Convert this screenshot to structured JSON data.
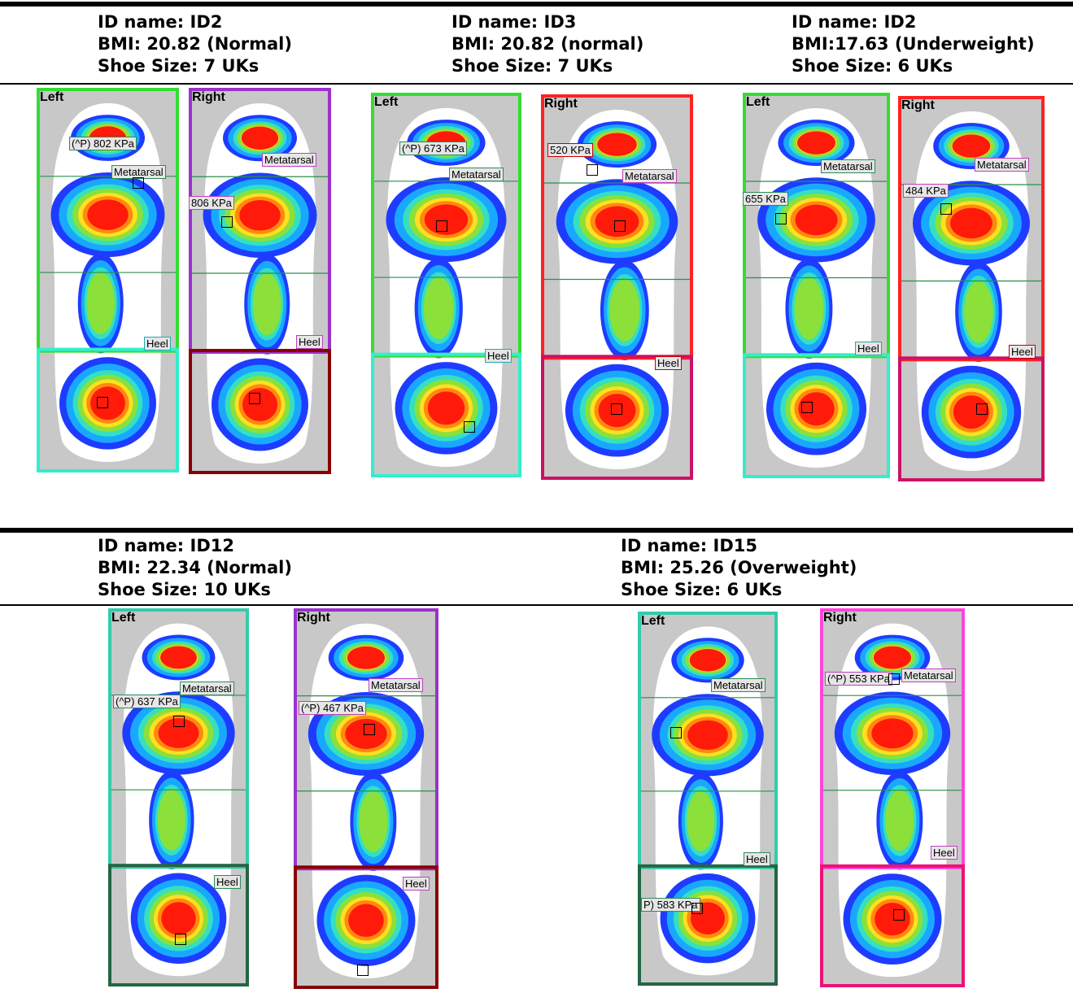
{
  "rows": [
    {
      "subjects": [
        {
          "id_line": "ID name: ID2",
          "bmi_line": "BMI: 20.82 (Normal)",
          "shoe_line": "Shoe Size: 7 UKs",
          "feet": [
            {
              "side": "Left",
              "frame_color": "#33dd33",
              "lower_color": "#33eecc",
              "tags": [
                {
                  "text": "(^P) 802 KPa",
                  "style": "green"
                },
                {
                  "text": "Metatarsal",
                  "style": "green"
                },
                {
                  "text": "Heel",
                  "style": "teal"
                }
              ]
            },
            {
              "side": "Right",
              "frame_color": "#9933cc",
              "lower_color": "#880000",
              "tags": [
                {
                  "text": "Metatarsal",
                  "style": "pink"
                },
                {
                  "text": "806 KPa",
                  "style": "pink"
                },
                {
                  "text": "Heel",
                  "style": "pink"
                }
              ]
            }
          ]
        },
        {
          "id_line": "ID name: ID3",
          "bmi_line": "BMI: 20.82 (normal)",
          "shoe_line": "Shoe Size: 7 UKs",
          "feet": [
            {
              "side": "Left",
              "frame_color": "#33dd33",
              "lower_color": "#33eecc",
              "tags": [
                {
                  "text": "(^P) 673 KPa",
                  "style": "green"
                },
                {
                  "text": "Metatarsal",
                  "style": "green"
                },
                {
                  "text": "Heel",
                  "style": "teal"
                }
              ]
            },
            {
              "side": "Right",
              "frame_color": "#ff2222",
              "lower_color": "#cc1166",
              "tags": [
                {
                  "text": "520 KPa",
                  "style": "red"
                },
                {
                  "text": "Metatarsal",
                  "style": "pink"
                },
                {
                  "text": "Heel",
                  "style": "red"
                }
              ]
            }
          ]
        },
        {
          "id_line": "ID name: ID2",
          "bmi_line": "BMI:17.63 (Underweight)",
          "shoe_line": "Shoe Size: 6 UKs",
          "feet": [
            {
              "side": "Left",
              "frame_color": "#33dd33",
              "lower_color": "#33eecc",
              "tags": [
                {
                  "text": "Metatarsal",
                  "style": "green"
                },
                {
                  "text": "655 KPa",
                  "style": "green"
                },
                {
                  "text": "Heel",
                  "style": "teal"
                }
              ]
            },
            {
              "side": "Right",
              "frame_color": "#ff2222",
              "lower_color": "#cc1166",
              "tags": [
                {
                  "text": "Metatarsal",
                  "style": "pink"
                },
                {
                  "text": "484 KPa",
                  "style": "pink"
                },
                {
                  "text": "Heel",
                  "style": "red"
                }
              ]
            }
          ]
        }
      ]
    },
    {
      "subjects": [
        {
          "id_line": "ID name: ID12",
          "bmi_line": "BMI: 22.34 (Normal)",
          "shoe_line": "Shoe Size: 10 UKs",
          "feet": [
            {
              "side": "Left",
              "frame_color": "#33ccaa",
              "lower_color": "#226644",
              "tags": [
                {
                  "text": "Metatarsal",
                  "style": "green"
                },
                {
                  "text": "(^P) 637 KPa",
                  "style": "green"
                },
                {
                  "text": "Heel",
                  "style": "green"
                }
              ]
            },
            {
              "side": "Right",
              "frame_color": "#9933cc",
              "lower_color": "#880000",
              "tags": [
                {
                  "text": "Metatarsal",
                  "style": "pink"
                },
                {
                  "text": "(^P) 467 KPa",
                  "style": "pink"
                },
                {
                  "text": "Heel",
                  "style": "pink"
                }
              ]
            }
          ]
        },
        {
          "id_line": "ID name: ID15",
          "bmi_line": "BMI: 25.26 (Overweight)",
          "shoe_line": "Shoe Size: 6 UKs",
          "feet": [
            {
              "side": "Left",
              "frame_color": "#33ccaa",
              "lower_color": "#226644",
              "tags": [
                {
                  "text": "Metatarsal",
                  "style": "green"
                },
                {
                  "text": "Heel",
                  "style": "green"
                },
                {
                  "text": "P) 583 KPa",
                  "style": "green"
                }
              ]
            },
            {
              "side": "Right",
              "frame_color": "#ff44dd",
              "lower_color": "#ee1177",
              "tags": [
                {
                  "text": "(^P) 553 KPa",
                  "style": "pink"
                },
                {
                  "text": "Metatarsal",
                  "style": "pink"
                },
                {
                  "text": "Heel",
                  "style": "pink"
                }
              ]
            }
          ]
        }
      ]
    }
  ]
}
